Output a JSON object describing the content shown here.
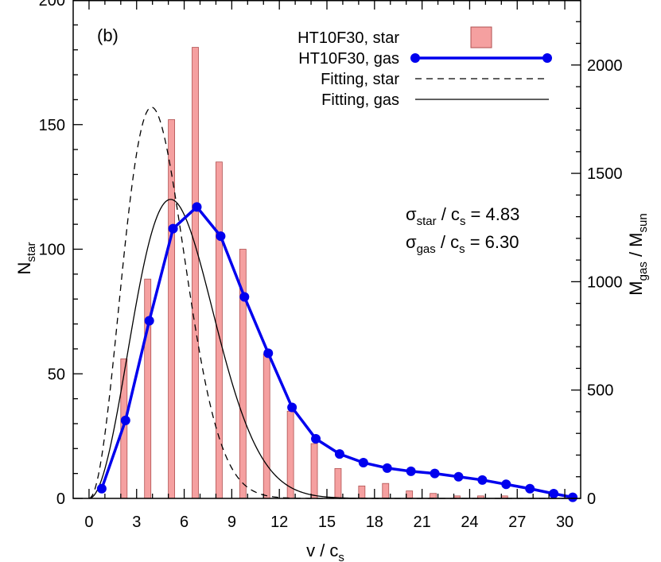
{
  "chart_data": {
    "type": "bar",
    "panel_label": "(b)",
    "xlabel": "v / c",
    "xlabel_sub": "s",
    "ylabel": "N",
    "ylabel_sub": "star",
    "ylabel_right": "M",
    "ylabel_right_sub1": "gas",
    "ylabel_right_mid": " / M",
    "ylabel_right_sub2": "sun",
    "xlim": [
      -1,
      31
    ],
    "ylim": [
      0,
      200
    ],
    "ylim_right": [
      0,
      2300
    ],
    "x_ticks": [
      0,
      3,
      6,
      9,
      12,
      15,
      18,
      21,
      24,
      27,
      30
    ],
    "x_tick_labels": [
      "0",
      "3",
      "6",
      "9",
      "12",
      "15",
      "18",
      "21",
      "24",
      "27",
      "30"
    ],
    "y_ticks": [
      0,
      50,
      100,
      150,
      200
    ],
    "y_tick_labels": [
      "0",
      "50",
      "100",
      "150",
      "200"
    ],
    "y_right_ticks": [
      0,
      500,
      1000,
      1500,
      2000
    ],
    "y_right_tick_labels": [
      "0",
      "500",
      "1000",
      "1500",
      "2000"
    ],
    "bar_color": "#f5a0a0",
    "gas_color": "#0000ee",
    "series": [
      {
        "name": "HT10F30, star",
        "kind": "bar",
        "x": [
          2.2,
          3.7,
          5.2,
          6.7,
          8.2,
          9.7,
          11.2,
          12.7,
          14.2,
          15.7,
          17.2,
          18.7,
          20.2,
          21.7,
          23.2,
          24.7,
          26.2
        ],
        "values": [
          56,
          88,
          152,
          181,
          135,
          100,
          58,
          35,
          22,
          12,
          5,
          6,
          3,
          2,
          1,
          1,
          1
        ]
      },
      {
        "name": "HT10F30, gas",
        "kind": "line",
        "axis": "right",
        "x": [
          0.8,
          2.3,
          3.8,
          5.3,
          6.8,
          8.3,
          9.8,
          11.3,
          12.8,
          14.3,
          15.8,
          17.3,
          18.8,
          20.3,
          21.8,
          23.3,
          24.8,
          26.3,
          27.8,
          29.3,
          30.5
        ],
        "values": [
          45,
          360,
          820,
          1245,
          1345,
          1210,
          930,
          670,
          420,
          275,
          205,
          165,
          140,
          125,
          115,
          100,
          85,
          65,
          45,
          22,
          5
        ]
      },
      {
        "name": "Fitting, star",
        "kind": "fit",
        "sigma": 4.83,
        "peak": 157,
        "axis": "left",
        "dash": true
      },
      {
        "name": "Fitting, gas",
        "kind": "fit",
        "sigma": 6.3,
        "peak": 1380,
        "axis": "right",
        "dash": false
      }
    ],
    "annotations": [
      {
        "sym": "σ",
        "sub": "star",
        "mid": " / c",
        "sub2": "s",
        "tail": " = 4.83"
      },
      {
        "sym": "σ",
        "sub": "gas",
        "mid": " / c",
        "sub2": "s",
        "tail": " = 6.30"
      }
    ],
    "legend_position": "top-right",
    "grid": false
  }
}
